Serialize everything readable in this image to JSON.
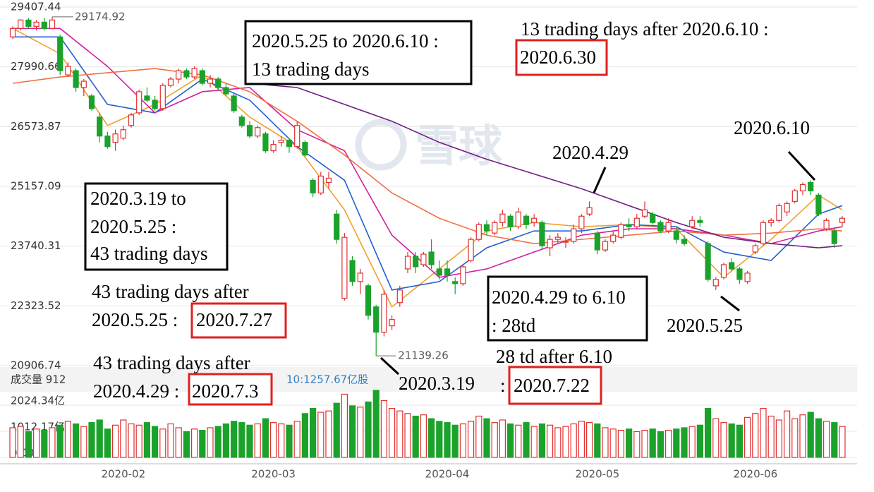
{
  "chart_data": {
    "type": "candlestick",
    "ylim": [
      20906.74,
      29407.44
    ],
    "yticks": [
      20906.74,
      22323.52,
      23740.31,
      25157.09,
      26573.87,
      27990.66,
      29407.44
    ],
    "grid": true,
    "up_color": "#e03030",
    "down_color": "#1aa22a",
    "categories": [
      null,
      null,
      null,
      null,
      null,
      null,
      null,
      null,
      null,
      null,
      null,
      null,
      null,
      null,
      "2020-02",
      null,
      null,
      null,
      null,
      null,
      null,
      null,
      null,
      null,
      null,
      null,
      null,
      null,
      null,
      null,
      null,
      null,
      null,
      "2020-03",
      null,
      null,
      null,
      null,
      null,
      null,
      null,
      null,
      null,
      null,
      null,
      null,
      null,
      null,
      null,
      null,
      null,
      null,
      null,
      null,
      null,
      "2020-04",
      null,
      null,
      null,
      null,
      null,
      null,
      null,
      null,
      null,
      null,
      null,
      null,
      null,
      null,
      null,
      null,
      null,
      null,
      "2020-05",
      null,
      null,
      null,
      null,
      null,
      null,
      null,
      null,
      null,
      null,
      null,
      null,
      null,
      null,
      null,
      null,
      null,
      null,
      null,
      "2020-06",
      null,
      null,
      null,
      null,
      null,
      null,
      null,
      null,
      null,
      null,
      null
    ],
    "candles": [
      [
        28700,
        28950,
        28650,
        28900
      ],
      [
        28900,
        29120,
        28850,
        29100
      ],
      [
        29100,
        29150,
        28900,
        28950
      ],
      [
        28950,
        29100,
        28850,
        29050
      ],
      [
        29050,
        29150,
        28850,
        28900
      ],
      [
        28900,
        29174.92,
        28880,
        29100
      ],
      [
        28700,
        28750,
        27800,
        27900
      ],
      [
        27800,
        28100,
        27750,
        28000
      ],
      [
        27900,
        27950,
        27400,
        27500
      ],
      [
        27500,
        27700,
        27300,
        27650
      ],
      [
        27300,
        27350,
        26950,
        27000
      ],
      [
        26800,
        26900,
        26200,
        26350
      ],
      [
        26350,
        26450,
        26050,
        26100
      ],
      [
        26200,
        26500,
        26000,
        26400
      ],
      [
        26300,
        26600,
        26250,
        26500
      ],
      [
        26600,
        26900,
        26550,
        26850
      ],
      [
        26900,
        27450,
        26850,
        27400
      ],
      [
        27300,
        27500,
        27150,
        27200
      ],
      [
        27200,
        27300,
        26950,
        27000
      ],
      [
        27000,
        27600,
        26950,
        27550
      ],
      [
        27550,
        27750,
        27500,
        27700
      ],
      [
        27700,
        27950,
        27600,
        27900
      ],
      [
        27900,
        27950,
        27700,
        27750
      ],
      [
        27750,
        28000,
        27700,
        27950
      ],
      [
        27900,
        27950,
        27550,
        27600
      ],
      [
        27600,
        27800,
        27500,
        27700
      ],
      [
        27700,
        27750,
        27450,
        27500
      ],
      [
        27500,
        27600,
        27300,
        27350
      ],
      [
        27300,
        27350,
        26900,
        26950
      ],
      [
        26800,
        26850,
        26550,
        26600
      ],
      [
        26600,
        26700,
        26300,
        26350
      ],
      [
        26350,
        26600,
        26300,
        26550
      ],
      [
        26400,
        26450,
        25950,
        26000
      ],
      [
        26000,
        26250,
        25950,
        26150
      ],
      [
        26200,
        26350,
        26100,
        26250
      ],
      [
        26250,
        26300,
        25950,
        26100
      ],
      [
        26100,
        26700,
        26050,
        26600
      ],
      [
        26200,
        26250,
        25850,
        25900
      ],
      [
        25300,
        25350,
        24900,
        25000
      ],
      [
        25000,
        25500,
        24950,
        25400
      ],
      [
        25250,
        25500,
        25100,
        25350
      ],
      [
        24500,
        24600,
        23800,
        23900
      ],
      [
        22500,
        24050,
        22450,
        23950
      ],
      [
        23400,
        23500,
        22800,
        22900
      ],
      [
        22900,
        23200,
        22600,
        23100
      ],
      [
        22800,
        22850,
        22000,
        22100
      ],
      [
        22300,
        22350,
        21139.26,
        21700
      ],
      [
        21700,
        22700,
        21600,
        22600
      ],
      [
        21850,
        22100,
        21750,
        22000
      ],
      [
        22400,
        22800,
        22300,
        22700
      ],
      [
        23200,
        23600,
        23100,
        23500
      ],
      [
        23500,
        23600,
        23100,
        23250
      ],
      [
        23300,
        23600,
        23250,
        23550
      ],
      [
        23600,
        23900,
        23200,
        23300
      ],
      [
        23200,
        23400,
        22950,
        23050
      ],
      [
        23200,
        23400,
        22900,
        23050
      ],
      [
        22900,
        23000,
        22600,
        22850
      ],
      [
        22850,
        23300,
        22800,
        23250
      ],
      [
        23400,
        23950,
        23350,
        23900
      ],
      [
        23900,
        24300,
        23850,
        24250
      ],
      [
        24250,
        24350,
        24000,
        24100
      ],
      [
        24050,
        24350,
        24000,
        24300
      ],
      [
        24300,
        24600,
        24200,
        24500
      ],
      [
        24450,
        24500,
        24100,
        24200
      ],
      [
        24200,
        24650,
        24150,
        24550
      ],
      [
        24450,
        24500,
        24150,
        24250
      ],
      [
        24300,
        24500,
        24200,
        24400
      ],
      [
        24300,
        24350,
        23650,
        23750
      ],
      [
        23700,
        24000,
        23500,
        23900
      ],
      [
        23900,
        24050,
        23800,
        23950
      ],
      [
        23850,
        23950,
        23700,
        23850
      ],
      [
        23850,
        24250,
        23800,
        24150
      ],
      [
        24150,
        24500,
        24050,
        24450
      ],
      [
        24500,
        24800,
        24450,
        24650
      ],
      [
        24050,
        24100,
        23550,
        23650
      ],
      [
        23650,
        23900,
        23600,
        23850
      ],
      [
        23850,
        24100,
        23800,
        24000
      ],
      [
        23950,
        24300,
        23900,
        24250
      ],
      [
        24250,
        24400,
        24100,
        24200
      ],
      [
        24200,
        24500,
        24150,
        24400
      ],
      [
        24450,
        24800,
        24400,
        24600
      ],
      [
        24500,
        24550,
        24250,
        24300
      ],
      [
        24300,
        24350,
        24050,
        24100
      ],
      [
        24100,
        24400,
        24050,
        24300
      ],
      [
        24100,
        24200,
        23800,
        23900
      ],
      [
        23900,
        24000,
        23750,
        23800
      ],
      [
        24200,
        24450,
        24150,
        24350
      ],
      [
        24350,
        24450,
        24200,
        24300
      ],
      [
        23800,
        23850,
        22900,
        22950
      ],
      [
        22800,
        23000,
        22700,
        22950
      ],
      [
        23000,
        23350,
        22950,
        23300
      ],
      [
        23350,
        23450,
        23150,
        23200
      ],
      [
        23200,
        23250,
        22850,
        22950
      ],
      [
        22900,
        23150,
        22850,
        23100
      ],
      [
        23600,
        23800,
        23550,
        23750
      ],
      [
        23800,
        24350,
        23750,
        24300
      ],
      [
        24300,
        24400,
        24200,
        24350
      ],
      [
        24350,
        24750,
        24300,
        24700
      ],
      [
        24550,
        24800,
        24450,
        24750
      ],
      [
        24800,
        25100,
        24750,
        25050
      ],
      [
        25050,
        25250,
        24950,
        25200
      ],
      [
        25250,
        25300,
        24950,
        25050
      ],
      [
        24950,
        25000,
        24450,
        24500
      ],
      [
        24150,
        24400,
        24100,
        24350
      ],
      [
        24100,
        24150,
        23700,
        23800
      ],
      [
        24300,
        24450,
        24200,
        24400
      ]
    ],
    "ma_lines": [
      {
        "color": "#f0a030",
        "x": [
          0,
          6,
          12,
          18,
          24,
          30,
          36,
          42,
          48,
          54,
          60,
          66,
          72,
          78,
          84,
          90,
          96,
          102,
          105
        ],
        "values": [
          28900,
          28300,
          26600,
          27100,
          27800,
          26800,
          26100,
          24600,
          22300,
          23200,
          24100,
          24300,
          24200,
          24250,
          24150,
          23000,
          23900,
          24950,
          24600
        ]
      },
      {
        "color": "#2060d0",
        "x": [
          0,
          6,
          12,
          18,
          24,
          30,
          36,
          42,
          48,
          54,
          60,
          66,
          72,
          78,
          84,
          90,
          96,
          102,
          105
        ],
        "values": [
          28700,
          28700,
          27100,
          26900,
          27700,
          27200,
          26100,
          25300,
          22700,
          22900,
          23700,
          24100,
          24100,
          24250,
          24200,
          23600,
          23400,
          24500,
          24700
        ]
      },
      {
        "color": "#d020a0",
        "x": [
          0,
          6,
          12,
          18,
          24,
          30,
          36,
          42,
          48,
          54,
          60,
          66,
          72,
          78,
          84,
          90,
          96,
          102,
          105
        ],
        "values": [
          28900,
          28900,
          28000,
          26900,
          27400,
          27500,
          26500,
          26000,
          24000,
          23000,
          23200,
          23600,
          24000,
          24150,
          24150,
          24000,
          23800,
          24100,
          24200
        ]
      },
      {
        "color": "#f07040",
        "x": [
          0,
          6,
          12,
          18,
          24,
          30,
          36,
          42,
          48,
          54,
          60,
          66,
          72,
          78,
          84,
          90,
          96,
          102,
          105
        ],
        "values": [
          27600,
          27750,
          27850,
          27950,
          27800,
          27400,
          26700,
          25900,
          25000,
          24400,
          24000,
          23800,
          23900,
          24000,
          24100,
          24000,
          24050,
          24150,
          24100
        ]
      },
      {
        "color": "#702080",
        "x": [
          30,
          36,
          42,
          48,
          54,
          60,
          66,
          72,
          78,
          84,
          90,
          96,
          102,
          105
        ],
        "values": [
          27600,
          27500,
          27100,
          26700,
          26200,
          25800,
          25450,
          25100,
          24700,
          24300,
          23950,
          23800,
          23700,
          23750
        ]
      }
    ],
    "volume": [
      1150,
      1200,
      1000,
      1100,
      1050,
      1150,
      1250,
      1400,
      1300,
      1200,
      1350,
      1450,
      1100,
      1250,
      1450,
      1300,
      1250,
      1350,
      1200,
      1100,
      1300,
      1150,
      1000,
      1100,
      1050,
      1150,
      1200,
      1300,
      1400,
      1350,
      1250,
      1300,
      1500,
      1350,
      1300,
      1250,
      1400,
      1700,
      1900,
      1750,
      1800,
      2100,
      2450,
      2000,
      1950,
      2150,
      2600,
      2200,
      1900,
      1800,
      1700,
      1600,
      1650,
      1500,
      1400,
      1350,
      1250,
      1300,
      1400,
      1600,
      1500,
      1350,
      1450,
      1300,
      1250,
      1350,
      1200,
      1300,
      1250,
      1150,
      1200,
      1300,
      1400,
      1350,
      1300,
      1150,
      1100,
      1050,
      1100,
      1000,
      1050,
      1100,
      1000,
      1050,
      1100,
      1150,
      1200,
      1250,
      1900,
      1500,
      1350,
      1300,
      1250,
      1550,
      1700,
      1900,
      1600,
      1450,
      1800,
      1500,
      1650,
      1750,
      1500,
      1400,
      1350,
      1200
    ],
    "volume_ylim": [
      0,
      2024.34
    ],
    "volume_yticks": [
      {
        "value": 0,
        "label": "0.00"
      },
      {
        "value": 1012.17,
        "label": "1012.17亿"
      },
      {
        "value": 2024.34,
        "label": "2024.34亿"
      }
    ],
    "volume_header": [
      "成交量 912",
      "10:1257.67亿股"
    ],
    "watermark": "雪球",
    "notes": [
      "2020.5.25 to 2020.6.10 :",
      "13 trading days",
      "13 trading days after 2020.6.10 :",
      "2020.6.30",
      "2020.6.10",
      "2020.4.29",
      "2020.3.19 to",
      "2020.5.25 :",
      "43 trading days",
      "43 trading days after",
      "2020.5.25 :",
      "2020.7.27",
      "2020.4.29 to 6.10",
      ": 28td",
      "2020.5.25",
      "28 td after 6.10",
      ":",
      "2020.7.22",
      "43 trading days after",
      "2020.4.29 :",
      "2020.7.3",
      "2020.3.19"
    ]
  }
}
